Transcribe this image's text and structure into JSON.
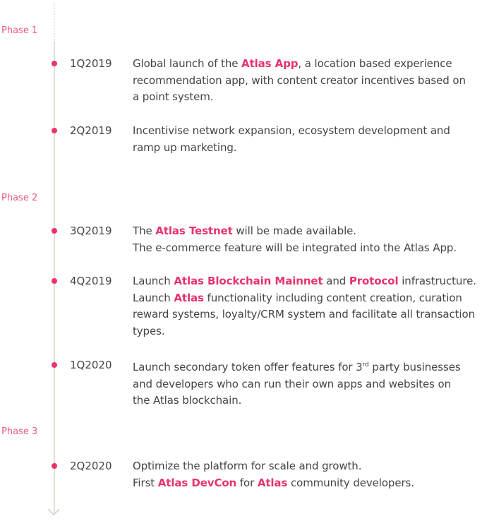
{
  "accent": "#e8336b",
  "phases": [
    "Phase 1",
    "Phase 2",
    "Phase 3"
  ],
  "items": [
    {
      "date": "1Q2019",
      "lines": [
        [
          {
            "t": "Global launch of the "
          },
          {
            "t": "Atlas App",
            "b": true
          },
          {
            "t": ", a location based experience"
          }
        ],
        [
          {
            "t": "recommendation app, with content creator incentives based on"
          }
        ],
        [
          {
            "t": "a point system."
          }
        ]
      ]
    },
    {
      "date": "2Q2019",
      "lines": [
        [
          {
            "t": "Incentivise network expansion, ecosystem development and"
          }
        ],
        [
          {
            "t": "ramp up marketing."
          }
        ]
      ]
    },
    {
      "date": "3Q2019",
      "lines": [
        [
          {
            "t": "The "
          },
          {
            "t": "Atlas Testnet",
            "b": true
          },
          {
            "t": " will be made available."
          }
        ],
        [
          {
            "t": "The e-commerce feature will be integrated into the Atlas App."
          }
        ]
      ]
    },
    {
      "date": "4Q2019",
      "lines": [
        [
          {
            "t": "Launch "
          },
          {
            "t": "Atlas Blockchain Mainnet",
            "b": true
          },
          {
            "t": " and "
          },
          {
            "t": "Protocol",
            "b": true
          },
          {
            "t": " infrastructure."
          }
        ],
        [
          {
            "t": "Launch "
          },
          {
            "t": "Atlas",
            "b": true
          },
          {
            "t": " functionality including content creation, curation"
          }
        ],
        [
          {
            "t": "reward systems, loyalty/CRM system and facilitate all transaction"
          }
        ],
        [
          {
            "t": "types."
          }
        ]
      ]
    },
    {
      "date": "1Q2020",
      "lines": [
        [
          {
            "t": "Launch secondary token offer features for 3"
          },
          {
            "t": "rd",
            "sup": true
          },
          {
            "t": " party businesses"
          }
        ],
        [
          {
            "t": "and developers who can run their own apps and websites on"
          }
        ],
        [
          {
            "t": "the Atlas blockchain."
          }
        ]
      ]
    },
    {
      "date": "2Q2020",
      "lines": [
        [
          {
            "t": "Optimize the platform for scale and growth."
          }
        ],
        [
          {
            "t": "First "
          },
          {
            "t": "Atlas DevCon",
            "b": true
          },
          {
            "t": " for "
          },
          {
            "t": "Atlas",
            "b": true
          },
          {
            "t": " community developers."
          }
        ]
      ]
    }
  ]
}
